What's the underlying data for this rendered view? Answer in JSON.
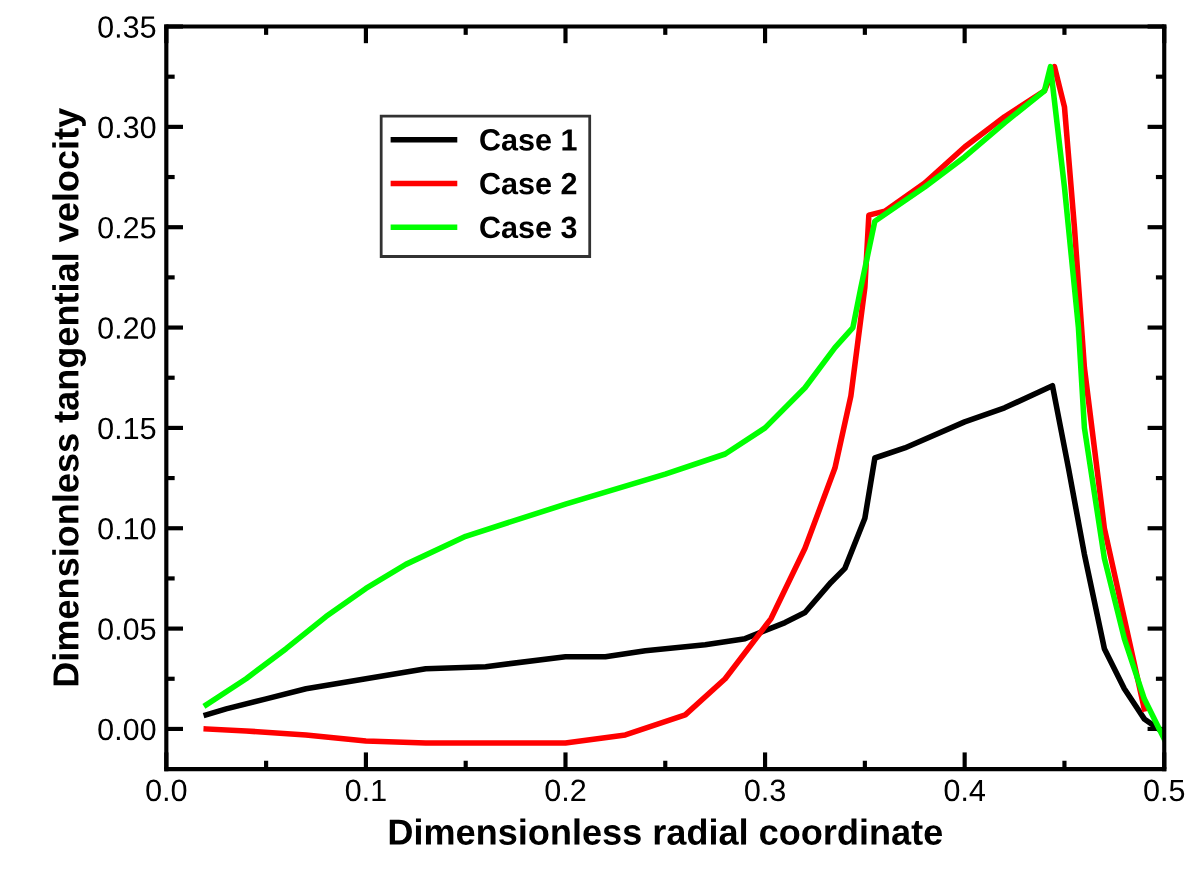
{
  "chart_data": {
    "type": "line",
    "xlabel": "Dimensionless radial coordinate",
    "ylabel": "Dimensionless tangential velocity",
    "xlim": [
      0.0,
      0.5
    ],
    "ylim": [
      -0.02,
      0.35
    ],
    "xticks": [
      {
        "value": 0.0,
        "label": "0.0"
      },
      0.1,
      0.2,
      0.3,
      0.4,
      0.5
    ],
    "yticks": [
      {
        "value": 0.0,
        "label": "0.00"
      },
      0.05,
      {
        "value": 0.1,
        "label": "0.10"
      },
      0.15,
      {
        "value": 0.2,
        "label": "0.20"
      },
      0.25,
      {
        "value": 0.3,
        "label": "0.30"
      },
      0.35
    ],
    "grid": false,
    "legend": "top left",
    "marker": "none",
    "line_style": "solid",
    "series": [
      {
        "name": "Case 1",
        "color": "#000000",
        "x": [
          0.02,
          0.03,
          0.05,
          0.07,
          0.1,
          0.13,
          0.16,
          0.2,
          0.22,
          0.24,
          0.27,
          0.29,
          0.31,
          0.32,
          0.333,
          0.34,
          0.35,
          0.355,
          0.37,
          0.4,
          0.42,
          0.444,
          0.452,
          0.46,
          0.47,
          0.48,
          0.49,
          0.5
        ],
        "values": [
          0.007,
          0.01,
          0.015,
          0.02,
          0.025,
          0.03,
          0.031,
          0.036,
          0.036,
          0.039,
          0.042,
          0.045,
          0.053,
          0.058,
          0.073,
          0.08,
          0.105,
          0.135,
          0.14,
          0.153,
          0.16,
          0.171,
          0.13,
          0.087,
          0.04,
          0.02,
          0.005,
          -0.002
        ]
      },
      {
        "name": "Case 2",
        "color": "#ff0000",
        "x": [
          0.02,
          0.04,
          0.07,
          0.1,
          0.13,
          0.2,
          0.23,
          0.26,
          0.28,
          0.303,
          0.32,
          0.335,
          0.343,
          0.35,
          0.352,
          0.36,
          0.38,
          0.4,
          0.42,
          0.44,
          0.445,
          0.45,
          0.455,
          0.46,
          0.47,
          0.48,
          0.49
        ],
        "values": [
          0.0,
          -0.001,
          -0.003,
          -0.006,
          -0.007,
          -0.007,
          -0.003,
          0.007,
          0.025,
          0.055,
          0.09,
          0.13,
          0.166,
          0.22,
          0.256,
          0.258,
          0.272,
          0.29,
          0.305,
          0.318,
          0.33,
          0.31,
          0.25,
          0.18,
          0.1,
          0.055,
          0.01
        ]
      },
      {
        "name": "Case 3",
        "color": "#00ff00",
        "x": [
          0.02,
          0.04,
          0.06,
          0.08,
          0.1,
          0.12,
          0.15,
          0.2,
          0.25,
          0.28,
          0.3,
          0.32,
          0.335,
          0.344,
          0.348,
          0.355,
          0.38,
          0.4,
          0.42,
          0.44,
          0.443,
          0.45,
          0.457,
          0.46,
          0.47,
          0.48,
          0.49,
          0.5
        ],
        "values": [
          0.012,
          0.025,
          0.04,
          0.056,
          0.07,
          0.082,
          0.096,
          0.112,
          0.127,
          0.137,
          0.15,
          0.17,
          0.19,
          0.2,
          0.22,
          0.253,
          0.27,
          0.285,
          0.302,
          0.318,
          0.33,
          0.27,
          0.2,
          0.15,
          0.085,
          0.045,
          0.015,
          -0.005
        ]
      }
    ]
  }
}
